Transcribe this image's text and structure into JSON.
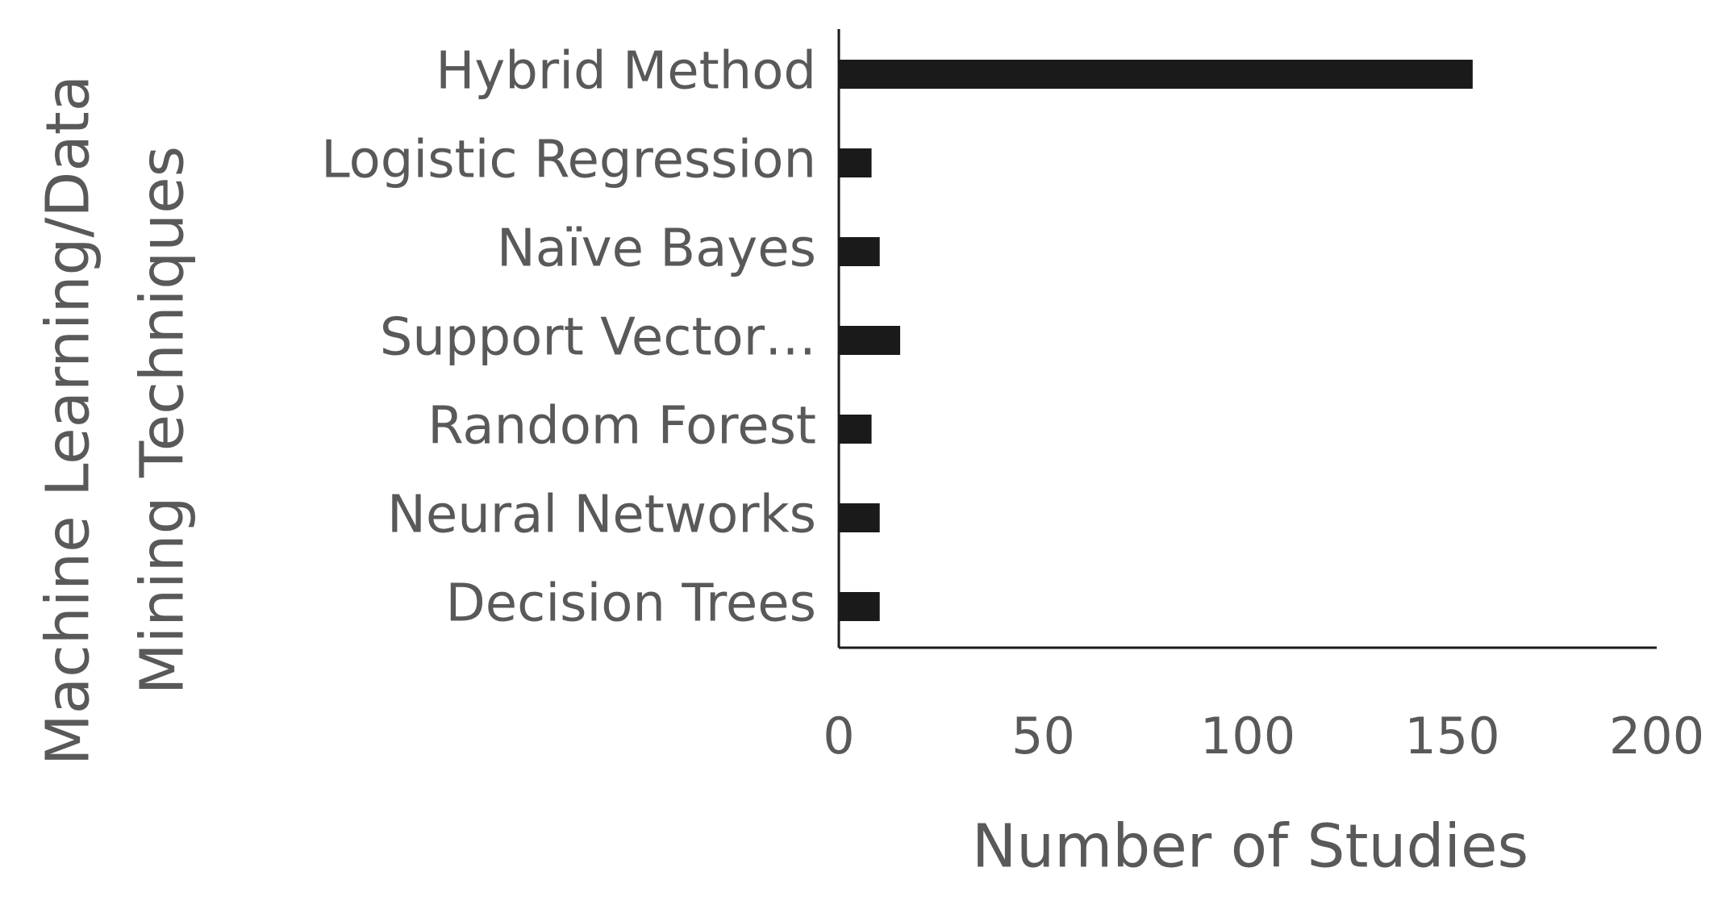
{
  "chart_data": {
    "type": "hbar",
    "x_label": "Number of Studies",
    "y_label": [
      "Machine Learning/Data",
      "Mining Techniques"
    ],
    "categories": [
      "Hybrid Method",
      "Logistic Regression",
      "Naïve Bayes",
      "Support Vector…",
      "Random Forest",
      "Neural Networks",
      "Decision Trees"
    ],
    "values": [
      155,
      8,
      10,
      15,
      8,
      10,
      10
    ],
    "color": "#1a1a1a",
    "xlim": [
      0,
      200
    ],
    "xticks": [
      0,
      50,
      100,
      150,
      200
    ],
    "grid": false
  }
}
